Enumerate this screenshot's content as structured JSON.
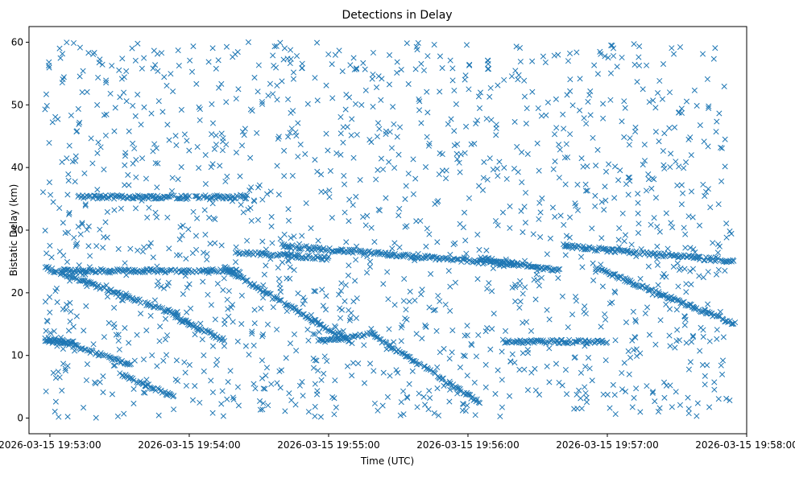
{
  "chart_data": {
    "type": "scatter",
    "title": "Detections in Delay",
    "xlabel": "Time (UTC)",
    "ylabel": "Bistatic Delay (km)",
    "marker": "x",
    "color": "#1f77b4",
    "grid": false,
    "legend": "none",
    "xlim": [
      "2026-03-15 19:52:51",
      "2026-03-15 19:58:00"
    ],
    "ylim": [
      -2.5,
      62.5
    ],
    "x_ticks": [
      "2026-03-15 19:53:00",
      "2026-03-15 19:54:00",
      "2026-03-15 19:55:00",
      "2026-03-15 19:56:00",
      "2026-03-15 19:57:00",
      "2026-03-15 19:58:00"
    ],
    "y_ticks": [
      0,
      10,
      20,
      30,
      40,
      50,
      60
    ],
    "data_start": "2026-03-15 19:52:57",
    "data_end": "2026-03-15 19:57:54",
    "tracks": [
      {
        "kind": "constant",
        "t_start": "19:52:58",
        "t_end": "19:53:10",
        "delay": 12.2
      },
      {
        "kind": "constant",
        "t_start": "19:53:05",
        "t_end": "19:54:22",
        "delay": 23.5
      },
      {
        "kind": "constant",
        "t_start": "19:53:12",
        "t_end": "19:54:25",
        "delay": 35.3
      },
      {
        "kind": "ramp",
        "t_start": "19:52:58",
        "t_end": "19:53:55",
        "delay_start": 24.0,
        "delay_end": 16.5
      },
      {
        "kind": "ramp",
        "t_start": "19:52:58",
        "t_end": "19:53:35",
        "delay_start": 13.0,
        "delay_end": 8.5
      },
      {
        "kind": "ramp",
        "t_start": "19:53:30",
        "t_end": "19:53:53",
        "delay_start": 7.0,
        "delay_end": 3.5
      },
      {
        "kind": "ramp",
        "t_start": "19:53:54",
        "t_end": "19:54:15",
        "delay_start": 16.0,
        "delay_end": 12.5
      },
      {
        "kind": "ramp",
        "t_start": "19:54:15",
        "t_end": "19:55:10",
        "delay_start": 24.0,
        "delay_end": 12.0
      },
      {
        "kind": "ramp",
        "t_start": "19:54:20",
        "t_end": "19:55:00",
        "delay_start": 26.5,
        "delay_end": 25.5
      },
      {
        "kind": "ramp",
        "t_start": "19:54:40",
        "t_end": "19:56:20",
        "delay_start": 27.5,
        "delay_end": 24.5
      },
      {
        "kind": "ramp",
        "t_start": "19:54:55",
        "t_end": "19:55:20",
        "delay_start": 12.2,
        "delay_end": 13.5
      },
      {
        "kind": "ramp",
        "t_start": "19:55:20",
        "t_end": "19:56:05",
        "delay_start": 13.0,
        "delay_end": 2.5
      },
      {
        "kind": "ramp",
        "t_start": "19:56:05",
        "t_end": "19:56:40",
        "delay_start": 25.5,
        "delay_end": 23.5
      },
      {
        "kind": "ramp",
        "t_start": "19:56:40",
        "t_end": "19:57:55",
        "delay_start": 27.5,
        "delay_end": 25.0
      },
      {
        "kind": "ramp",
        "t_start": "19:56:55",
        "t_end": "19:57:55",
        "delay_start": 24.0,
        "delay_end": 15.0
      },
      {
        "kind": "constant",
        "t_start": "19:56:15",
        "t_end": "19:57:00",
        "delay": 12.2
      }
    ],
    "clutter": {
      "count": 1500,
      "delay_range": [
        0,
        60
      ]
    }
  }
}
